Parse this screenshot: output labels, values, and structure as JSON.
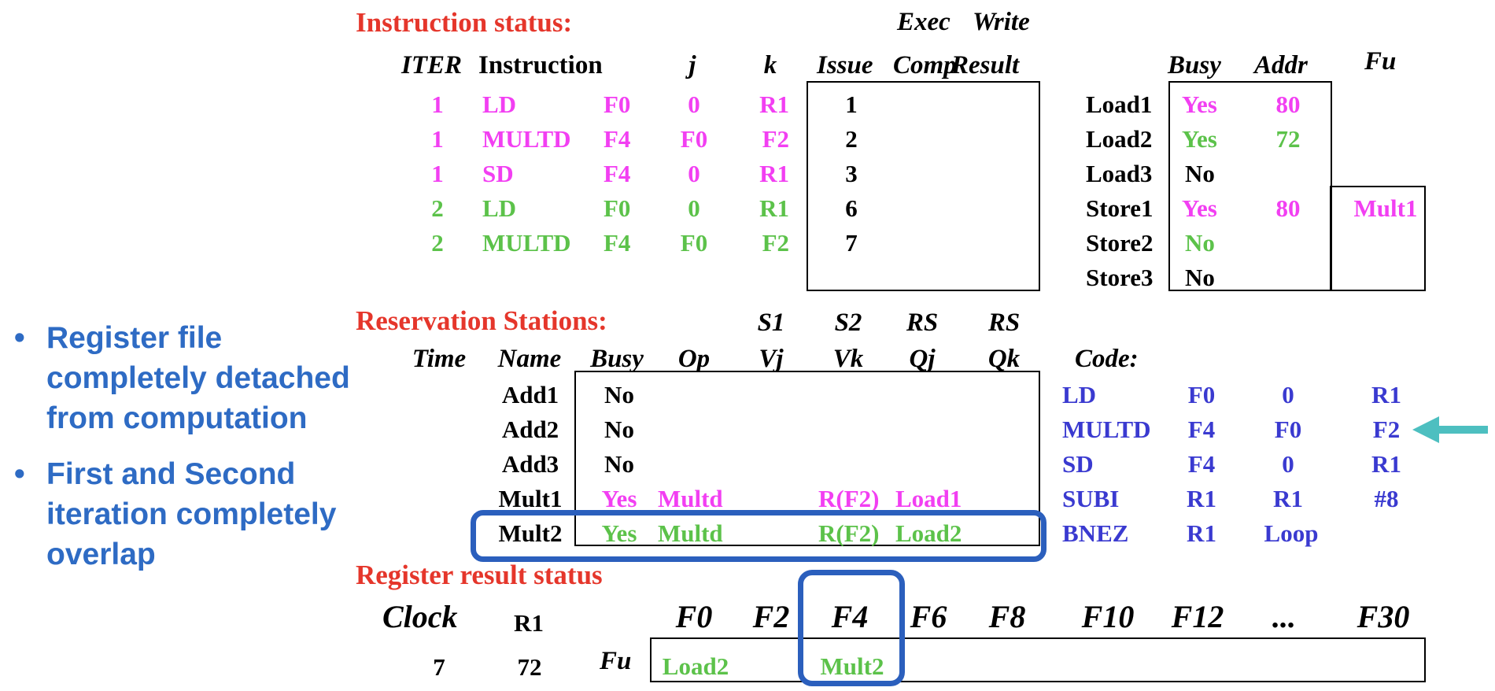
{
  "instruction_status": {
    "title": "Instruction status:",
    "exec_label": "Exec",
    "write_label": "Write",
    "headers": {
      "iter": "ITER",
      "instruction": "Instruction",
      "j": "j",
      "k": "k",
      "issue": "Issue",
      "comp": "Comp",
      "result": "Result"
    },
    "rows": [
      {
        "iter": "1",
        "op": "LD",
        "dest": "F0",
        "j": "0",
        "k": "R1",
        "issue": "1"
      },
      {
        "iter": "1",
        "op": "MULTD",
        "dest": "F4",
        "j": "F0",
        "k": "F2",
        "issue": "2"
      },
      {
        "iter": "1",
        "op": "SD",
        "dest": "F4",
        "j": "0",
        "k": "R1",
        "issue": "3"
      },
      {
        "iter": "2",
        "op": "LD",
        "dest": "F0",
        "j": "0",
        "k": "R1",
        "issue": "6"
      },
      {
        "iter": "2",
        "op": "MULTD",
        "dest": "F4",
        "j": "F0",
        "k": "F2",
        "issue": "7"
      }
    ]
  },
  "load_store_buffers": {
    "headers": {
      "busy": "Busy",
      "addr": "Addr",
      "fu": "Fu"
    },
    "rows": [
      {
        "name": "Load1",
        "busy": "Yes",
        "addr": "80",
        "fu": ""
      },
      {
        "name": "Load2",
        "busy": "Yes",
        "addr": "72",
        "fu": ""
      },
      {
        "name": "Load3",
        "busy": "No",
        "addr": "",
        "fu": ""
      },
      {
        "name": "Store1",
        "busy": "Yes",
        "addr": "80",
        "fu": "Mult1"
      },
      {
        "name": "Store2",
        "busy": "No",
        "addr": "",
        "fu": ""
      },
      {
        "name": "Store3",
        "busy": "No",
        "addr": "",
        "fu": ""
      }
    ]
  },
  "reservation_stations": {
    "title": "Reservation Stations:",
    "headers_top": {
      "s1": "S1",
      "s2": "S2",
      "rs1": "RS",
      "rs2": "RS"
    },
    "headers": {
      "time": "Time",
      "name": "Name",
      "busy": "Busy",
      "op": "Op",
      "vj": "Vj",
      "vk": "Vk",
      "qj": "Qj",
      "qk": "Qk"
    },
    "rows": [
      {
        "name": "Add1",
        "busy": "No",
        "op": "",
        "vj": "",
        "vk": "",
        "qj": ""
      },
      {
        "name": "Add2",
        "busy": "No",
        "op": "",
        "vj": "",
        "vk": "",
        "qj": ""
      },
      {
        "name": "Add3",
        "busy": "No",
        "op": "",
        "vj": "",
        "vk": "",
        "qj": ""
      },
      {
        "name": "Mult1",
        "busy": "Yes",
        "op": "Multd",
        "vj": "",
        "vk": "R(F2)",
        "qj": "Load1"
      },
      {
        "name": "Mult2",
        "busy": "Yes",
        "op": "Multd",
        "vj": "",
        "vk": "R(F2)",
        "qj": "Load2"
      }
    ]
  },
  "code": {
    "title": "Code:",
    "rows": [
      [
        "LD",
        "F0",
        "0",
        "R1"
      ],
      [
        "MULTD",
        "F4",
        "F0",
        "F2"
      ],
      [
        "SD",
        "F4",
        "0",
        "R1"
      ],
      [
        "SUBI",
        "R1",
        "R1",
        "#8"
      ],
      [
        "BNEZ",
        "R1",
        "Loop",
        ""
      ]
    ],
    "current_row_index": 1
  },
  "register_result_status": {
    "title": "Register result status",
    "clock_label": "Clock",
    "clock_value": "7",
    "r1_label": "R1",
    "r1_value": "72",
    "fu_label": "Fu",
    "registers": [
      "F0",
      "F2",
      "F4",
      "F6",
      "F8",
      "F10",
      "F12",
      "...",
      "F30"
    ],
    "values": [
      "Load2",
      "",
      "Mult2",
      "",
      "",
      "",
      "",
      "",
      ""
    ]
  },
  "bullets": [
    "Register file completely detached from computation",
    "First and Second iteration completely overlap"
  ],
  "colors": {
    "section_title": "#e5362b",
    "iteration_1": "#f23ff2",
    "iteration_2": "#5cc24a",
    "code": "#3a3ad0",
    "highlight_box": "#2b5fbd",
    "arrow": "#4dbfc0",
    "bullet_text": "#2e6bc4"
  }
}
